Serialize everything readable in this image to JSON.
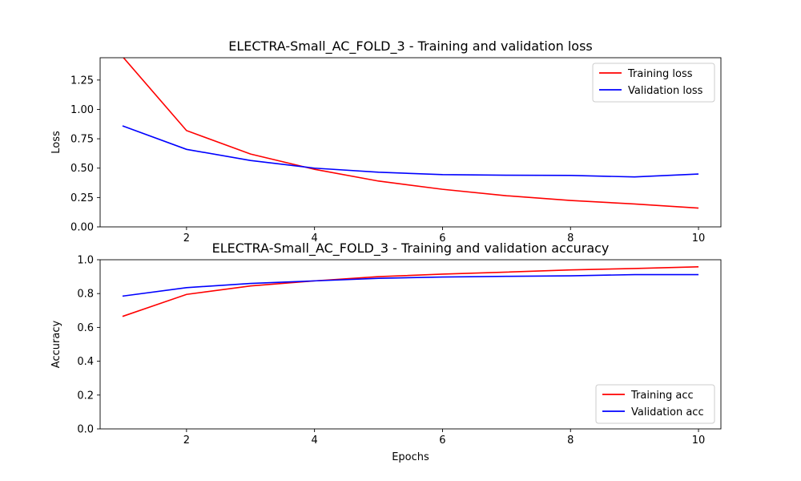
{
  "chart_data": [
    {
      "type": "line",
      "title": "ELECTRA-Small_AC_FOLD_3 - Training and validation loss",
      "xlabel": "",
      "ylabel": "Loss",
      "xlim": [
        0.65,
        10.35
      ],
      "ylim": [
        0,
        1.44
      ],
      "xticks": [
        2,
        4,
        6,
        8,
        10
      ],
      "xtick_labels": [
        "2",
        "4",
        "6",
        "8",
        "10"
      ],
      "yticks": [
        0,
        0.25,
        0.5,
        0.75,
        1.0,
        1.25
      ],
      "ytick_labels": [
        "0.00",
        "0.25",
        "0.50",
        "0.75",
        "1.00",
        "1.25"
      ],
      "grid": false,
      "legend_position": "top-right",
      "x": [
        1,
        2,
        3,
        4,
        5,
        6,
        7,
        8,
        9,
        10
      ],
      "series": [
        {
          "name": "Training loss",
          "color": "#ff0000",
          "values": [
            1.45,
            0.82,
            0.62,
            0.49,
            0.39,
            0.32,
            0.265,
            0.225,
            0.195,
            0.16
          ]
        },
        {
          "name": "Validation loss",
          "color": "#0000ff",
          "values": [
            0.86,
            0.66,
            0.565,
            0.5,
            0.465,
            0.445,
            0.44,
            0.438,
            0.425,
            0.45
          ]
        }
      ]
    },
    {
      "type": "line",
      "title": "ELECTRA-Small_AC_FOLD_3 - Training and validation accuracy",
      "xlabel": "Epochs",
      "ylabel": "Accuracy",
      "xlim": [
        0.65,
        10.35
      ],
      "ylim": [
        0,
        1.0
      ],
      "xticks": [
        2,
        4,
        6,
        8,
        10
      ],
      "xtick_labels": [
        "2",
        "4",
        "6",
        "8",
        "10"
      ],
      "yticks": [
        0,
        0.2,
        0.4,
        0.6,
        0.8,
        1.0
      ],
      "ytick_labels": [
        "0.0",
        "0.2",
        "0.4",
        "0.6",
        "0.8",
        "1.0"
      ],
      "grid": false,
      "legend_position": "bottom-right",
      "x": [
        1,
        2,
        3,
        4,
        5,
        6,
        7,
        8,
        9,
        10
      ],
      "series": [
        {
          "name": "Training acc",
          "color": "#ff0000",
          "values": [
            0.665,
            0.795,
            0.845,
            0.875,
            0.9,
            0.915,
            0.927,
            0.94,
            0.948,
            0.958
          ]
        },
        {
          "name": "Validation acc",
          "color": "#0000ff",
          "values": [
            0.785,
            0.835,
            0.86,
            0.875,
            0.89,
            0.898,
            0.902,
            0.905,
            0.912,
            0.912
          ]
        }
      ]
    }
  ]
}
